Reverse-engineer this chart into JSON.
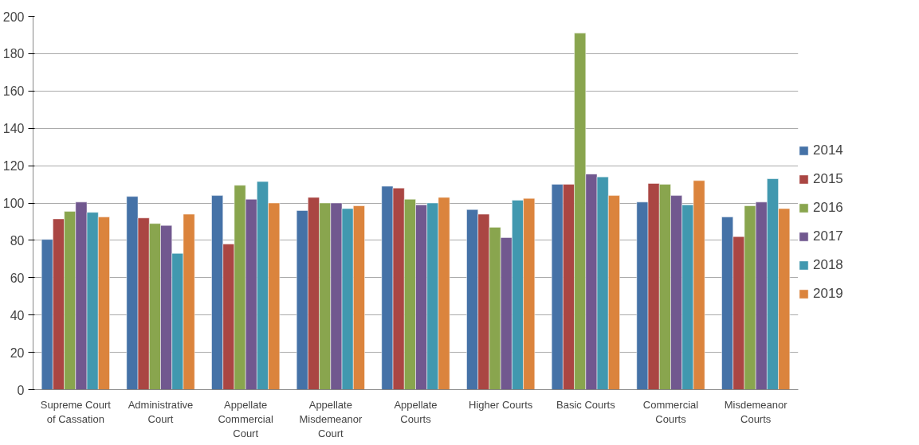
{
  "chart_data": {
    "type": "bar",
    "categories": [
      "Supreme Court of Cassation",
      "Administrative Court",
      "Appellate Commercial Court",
      "Appellate Misdemeanor Court",
      "Appellate Courts",
      "Higher Courts",
      "Basic Courts",
      "Commercial Courts",
      "Misdemeanor Courts"
    ],
    "series": [
      {
        "name": "2014",
        "color": "#4572a7",
        "values": [
          80.5,
          103.5,
          104,
          96,
          109,
          96.5,
          110,
          100.5,
          92.5
        ]
      },
      {
        "name": "2015",
        "color": "#aa4643",
        "values": [
          91.5,
          92,
          78,
          103,
          108,
          94,
          110,
          110.5,
          82
        ]
      },
      {
        "name": "2016",
        "color": "#89a54e",
        "values": [
          95.5,
          89,
          109.5,
          100,
          102,
          87,
          191,
          110,
          98.5
        ]
      },
      {
        "name": "2017",
        "color": "#71588f",
        "values": [
          100.5,
          88,
          102,
          100,
          99,
          81.5,
          115.5,
          104,
          100.5
        ]
      },
      {
        "name": "2018",
        "color": "#4198af",
        "values": [
          95,
          73,
          111.5,
          97,
          100,
          101.5,
          114,
          99,
          113
        ]
      },
      {
        "name": "2019",
        "color": "#db843d",
        "values": [
          92.5,
          94,
          100,
          98.5,
          103,
          102.5,
          104,
          112,
          97
        ]
      }
    ],
    "ylim": [
      0,
      200
    ],
    "yticks": [
      0,
      20,
      40,
      60,
      80,
      100,
      120,
      140,
      160,
      180,
      200
    ],
    "grid": "y",
    "legend": "right"
  }
}
